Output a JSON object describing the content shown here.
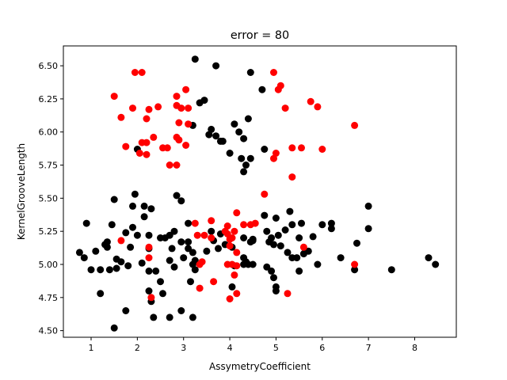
{
  "chart_data": {
    "type": "scatter",
    "title": "error = 80",
    "xlabel": "AssymetryCoefficient",
    "ylabel": "KernelGrooveLength",
    "xlim": [
      0.4,
      8.9
    ],
    "ylim": [
      4.45,
      6.65
    ],
    "xticks": [
      1,
      2,
      3,
      4,
      5,
      6,
      7,
      8
    ],
    "yticks": [
      4.5,
      4.75,
      5.0,
      5.25,
      5.5,
      5.75,
      6.0,
      6.25,
      6.5
    ],
    "ytick_labels": [
      "4.50",
      "4.75",
      "5.00",
      "5.25",
      "5.50",
      "5.75",
      "6.00",
      "6.25",
      "6.50"
    ],
    "grid": false,
    "legend": "none",
    "series": [
      {
        "color": "#000000",
        "points": [
          [
            3.25,
            6.55
          ],
          [
            3.7,
            6.5
          ],
          [
            4.45,
            6.45
          ],
          [
            4.7,
            6.32
          ],
          [
            3.45,
            6.24
          ],
          [
            3.35,
            6.22
          ],
          [
            4.4,
            6.1
          ],
          [
            4.1,
            6.06
          ],
          [
            3.2,
            6.05
          ],
          [
            3.6,
            6.02
          ],
          [
            3.55,
            5.98
          ],
          [
            3.7,
            5.97
          ],
          [
            3.8,
            5.93
          ],
          [
            3.85,
            5.93
          ],
          [
            4.2,
            6.0
          ],
          [
            4.3,
            5.95
          ],
          [
            4.0,
            5.84
          ],
          [
            4.75,
            5.87
          ],
          [
            2.0,
            5.87
          ],
          [
            4.25,
            5.8
          ],
          [
            4.45,
            5.8
          ],
          [
            4.35,
            5.75
          ],
          [
            4.3,
            5.7
          ],
          [
            2.85,
            5.52
          ],
          [
            2.95,
            5.48
          ],
          [
            1.5,
            5.49
          ],
          [
            1.95,
            5.53
          ],
          [
            1.9,
            5.44
          ],
          [
            2.15,
            5.44
          ],
          [
            2.15,
            5.36
          ],
          [
            2.3,
            5.42
          ],
          [
            0.9,
            5.31
          ],
          [
            1.45,
            5.3
          ],
          [
            2.0,
            5.22
          ],
          [
            2.25,
            5.22
          ],
          [
            1.75,
            5.24
          ],
          [
            1.9,
            5.28
          ],
          [
            2.8,
            5.25
          ],
          [
            3.1,
            5.31
          ],
          [
            3.6,
            5.25
          ],
          [
            4.75,
            5.37
          ],
          [
            5.0,
            5.35
          ],
          [
            5.3,
            5.4
          ],
          [
            5.35,
            5.3
          ],
          [
            5.55,
            5.31
          ],
          [
            5.8,
            5.21
          ],
          [
            6.0,
            5.3
          ],
          [
            6.2,
            5.31
          ],
          [
            6.2,
            5.27
          ],
          [
            7.0,
            5.44
          ],
          [
            7.0,
            5.27
          ],
          [
            3.8,
            5.23
          ],
          [
            4.3,
            5.2
          ],
          [
            4.5,
            5.18
          ],
          [
            4.8,
            5.25
          ],
          [
            5.05,
            5.22
          ],
          [
            5.2,
            5.26
          ],
          [
            5.5,
            5.2
          ],
          [
            1.35,
            5.17
          ],
          [
            1.35,
            5.13
          ],
          [
            1.3,
            5.15
          ],
          [
            1.1,
            5.1
          ],
          [
            0.75,
            5.09
          ],
          [
            0.85,
            5.05
          ],
          [
            1.55,
            5.04
          ],
          [
            1.65,
            5.02
          ],
          [
            1.85,
            5.13
          ],
          [
            2.1,
            5.01
          ],
          [
            2.25,
            5.12
          ],
          [
            2.5,
            5.2
          ],
          [
            2.6,
            5.2
          ],
          [
            2.7,
            5.22
          ],
          [
            2.75,
            5.12
          ],
          [
            2.95,
            5.17
          ],
          [
            3.1,
            5.17
          ],
          [
            3.1,
            5.12
          ],
          [
            3.2,
            5.09
          ],
          [
            3.0,
            5.05
          ],
          [
            3.25,
            5.03
          ],
          [
            3.5,
            5.1
          ],
          [
            3.65,
            5.18
          ],
          [
            3.75,
            5.12
          ],
          [
            3.9,
            5.15
          ],
          [
            4.05,
            5.13
          ],
          [
            4.3,
            5.05
          ],
          [
            4.45,
            5.17
          ],
          [
            4.5,
            5.19
          ],
          [
            4.9,
            5.2
          ],
          [
            4.85,
            5.17
          ],
          [
            4.95,
            5.15
          ],
          [
            5.1,
            5.14
          ],
          [
            5.25,
            5.09
          ],
          [
            5.35,
            5.05
          ],
          [
            5.45,
            5.05
          ],
          [
            5.6,
            5.08
          ],
          [
            5.7,
            5.1
          ],
          [
            5.9,
            5.0
          ],
          [
            6.4,
            5.05
          ],
          [
            6.75,
            5.16
          ],
          [
            6.7,
            4.96
          ],
          [
            7.5,
            4.96
          ],
          [
            8.3,
            5.05
          ],
          [
            8.45,
            5.0
          ],
          [
            1.0,
            4.96
          ],
          [
            1.2,
            4.96
          ],
          [
            1.4,
            4.96
          ],
          [
            1.55,
            4.97
          ],
          [
            1.8,
            4.99
          ],
          [
            2.25,
            4.95
          ],
          [
            2.4,
            4.95
          ],
          [
            2.7,
            5.03
          ],
          [
            2.8,
            4.98
          ],
          [
            3.2,
            5.0
          ],
          [
            3.25,
            4.96
          ],
          [
            4.3,
            5.0
          ],
          [
            4.4,
            5.0
          ],
          [
            4.5,
            5.0
          ],
          [
            4.8,
            4.98
          ],
          [
            4.9,
            4.95
          ],
          [
            4.95,
            4.9
          ],
          [
            5.0,
            4.83
          ],
          [
            5.0,
            4.8
          ],
          [
            5.5,
            4.95
          ],
          [
            4.05,
            4.83
          ],
          [
            2.25,
            4.8
          ],
          [
            2.5,
            4.87
          ],
          [
            2.55,
            4.78
          ],
          [
            2.3,
            4.72
          ],
          [
            1.2,
            4.78
          ],
          [
            1.75,
            4.65
          ],
          [
            2.35,
            4.6
          ],
          [
            2.7,
            4.6
          ],
          [
            2.95,
            4.65
          ],
          [
            3.2,
            4.6
          ],
          [
            1.5,
            4.52
          ],
          [
            3.15,
            4.87
          ],
          [
            4.1,
            4.99
          ],
          [
            4.35,
            5.02
          ]
        ]
      },
      {
        "color": "#ff0000",
        "points": [
          [
            1.95,
            6.45
          ],
          [
            2.1,
            6.45
          ],
          [
            4.95,
            6.45
          ],
          [
            5.05,
            6.32
          ],
          [
            5.1,
            6.35
          ],
          [
            1.5,
            6.27
          ],
          [
            3.05,
            6.32
          ],
          [
            2.85,
            6.27
          ],
          [
            1.9,
            6.18
          ],
          [
            2.25,
            6.17
          ],
          [
            2.45,
            6.19
          ],
          [
            2.85,
            6.2
          ],
          [
            2.95,
            6.18
          ],
          [
            3.1,
            6.18
          ],
          [
            5.2,
            6.18
          ],
          [
            5.75,
            6.23
          ],
          [
            5.9,
            6.19
          ],
          [
            1.65,
            6.11
          ],
          [
            2.2,
            6.1
          ],
          [
            2.9,
            6.07
          ],
          [
            3.1,
            6.06
          ],
          [
            6.7,
            6.05
          ],
          [
            2.85,
            5.96
          ],
          [
            2.9,
            5.94
          ],
          [
            3.05,
            5.9
          ],
          [
            2.35,
            5.96
          ],
          [
            2.1,
            5.92
          ],
          [
            2.2,
            5.92
          ],
          [
            1.75,
            5.89
          ],
          [
            2.05,
            5.84
          ],
          [
            2.2,
            5.83
          ],
          [
            2.55,
            5.88
          ],
          [
            2.65,
            5.88
          ],
          [
            5.35,
            5.88
          ],
          [
            5.55,
            5.88
          ],
          [
            6.0,
            5.87
          ],
          [
            5.0,
            5.84
          ],
          [
            4.95,
            5.8
          ],
          [
            2.7,
            5.75
          ],
          [
            2.85,
            5.75
          ],
          [
            5.35,
            5.66
          ],
          [
            4.75,
            5.53
          ],
          [
            3.25,
            5.31
          ],
          [
            3.6,
            5.33
          ],
          [
            3.3,
            5.22
          ],
          [
            3.45,
            5.22
          ],
          [
            3.6,
            5.2
          ],
          [
            3.95,
            5.29
          ],
          [
            4.1,
            5.25
          ],
          [
            4.15,
            5.39
          ],
          [
            4.3,
            5.3
          ],
          [
            4.45,
            5.3
          ],
          [
            4.55,
            5.31
          ],
          [
            3.95,
            5.23
          ],
          [
            4.0,
            5.19
          ],
          [
            4.05,
            5.2
          ],
          [
            3.9,
            5.25
          ],
          [
            4.0,
            5.14
          ],
          [
            4.15,
            5.09
          ],
          [
            1.65,
            5.18
          ],
          [
            2.25,
            5.13
          ],
          [
            2.25,
            5.05
          ],
          [
            3.4,
            5.02
          ],
          [
            3.35,
            5.0
          ],
          [
            3.95,
            5.0
          ],
          [
            4.05,
            5.0
          ],
          [
            4.1,
            4.92
          ],
          [
            4.15,
            4.99
          ],
          [
            5.6,
            5.13
          ],
          [
            6.7,
            5.0
          ],
          [
            3.35,
            4.82
          ],
          [
            3.65,
            4.87
          ],
          [
            4.15,
            4.78
          ],
          [
            4.0,
            4.74
          ],
          [
            2.3,
            4.75
          ],
          [
            5.25,
            4.78
          ]
        ]
      }
    ]
  }
}
